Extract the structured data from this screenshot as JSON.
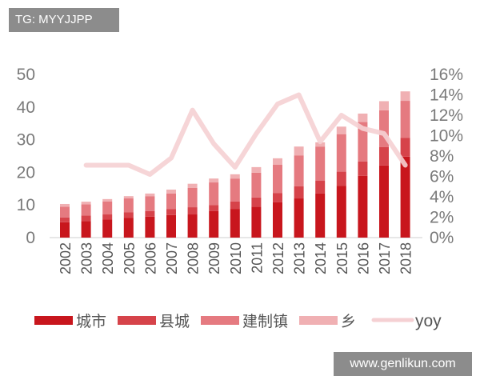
{
  "watermarks": {
    "top": "TG: MYYJJPP",
    "bottom": "www.genlikun.com"
  },
  "chart_data": {
    "type": "bar",
    "stacked": true,
    "categories": [
      "2002",
      "2003",
      "2004",
      "2005",
      "2006",
      "2007",
      "2008",
      "2009",
      "2010",
      "2011",
      "2012",
      "2013",
      "2014",
      "2015",
      "2016",
      "2017",
      "2018"
    ],
    "series": [
      {
        "name": "城市",
        "color": "#c8161d",
        "values": [
          4.7,
          5.1,
          5.6,
          6.0,
          6.4,
          6.9,
          7.1,
          8.1,
          8.8,
          9.5,
          10.8,
          12.0,
          13.5,
          15.9,
          18.9,
          22.1,
          24.8
        ]
      },
      {
        "name": "县城",
        "color": "#d6434a",
        "values": [
          1.5,
          1.7,
          1.5,
          1.8,
          1.7,
          1.8,
          2.2,
          1.9,
          2.3,
          2.8,
          2.8,
          3.7,
          3.9,
          4.3,
          4.4,
          5.6,
          5.8
        ]
      },
      {
        "name": "建制镇",
        "color": "#e57a80",
        "values": [
          3.3,
          3.4,
          4.0,
          4.2,
          4.6,
          4.8,
          5.9,
          6.9,
          7.0,
          7.6,
          8.7,
          9.5,
          10.5,
          11.5,
          12.1,
          11.3,
          11.3
        ]
      },
      {
        "name": "乡",
        "color": "#f0b0b3",
        "values": [
          0.8,
          0.8,
          0.7,
          0.7,
          0.8,
          1.2,
          1.3,
          1.2,
          1.3,
          1.7,
          2.0,
          2.7,
          1.3,
          2.3,
          2.6,
          2.8,
          2.9
        ]
      }
    ],
    "line_series": {
      "name": "yoy",
      "color": "#f5d0d3",
      "axis": "right",
      "x": [
        "2003",
        "2004",
        "2005",
        "2006",
        "2007",
        "2008",
        "2009",
        "2010",
        "2011",
        "2012",
        "2013",
        "2014",
        "2015",
        "2016",
        "2017",
        "2018"
      ],
      "values": [
        7.1,
        7.1,
        7.1,
        6.2,
        7.8,
        12.5,
        9.2,
        6.9,
        10.2,
        13.1,
        14.0,
        9.4,
        12.0,
        10.7,
        10.2,
        7.1
      ]
    },
    "y_left": {
      "range": [
        0,
        50
      ],
      "ticks": [
        "0",
        "10",
        "20",
        "30",
        "40",
        "50"
      ]
    },
    "y_right": {
      "range": [
        0,
        16
      ],
      "ticks": [
        "0%",
        "2%",
        "4%",
        "6%",
        "8%",
        "10%",
        "12%",
        "14%",
        "16%"
      ]
    },
    "grid": false,
    "legend": "bottom"
  }
}
